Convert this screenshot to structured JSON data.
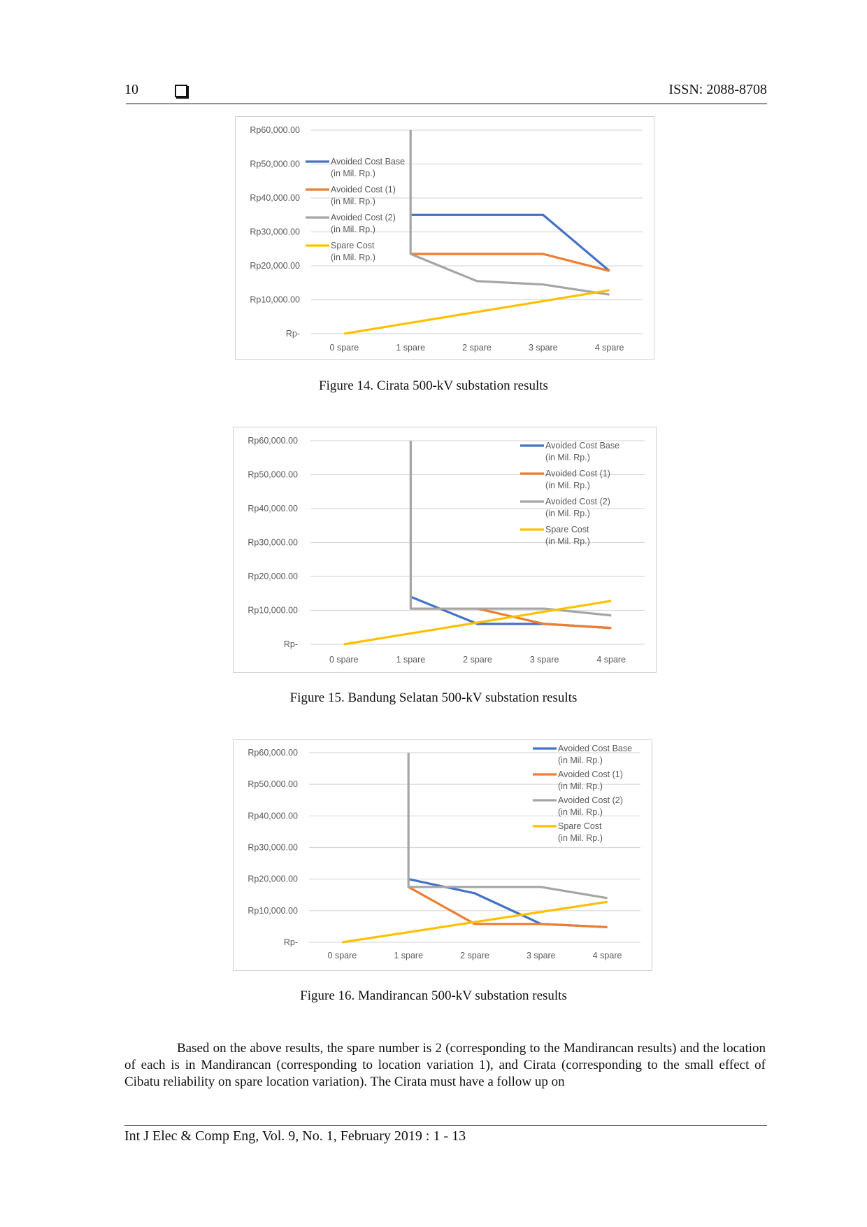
{
  "header": {
    "page_number": "10",
    "issn": "ISSN: 2088-8708"
  },
  "figures": [
    {
      "caption": "Figure 14. Cirata 500-kV substation results"
    },
    {
      "caption": "Figure 15. Bandung Selatan 500-kV substation results"
    },
    {
      "caption": "Figure 16. Mandirancan 500-kV substation results"
    }
  ],
  "chart_data": [
    {
      "type": "line",
      "categories": [
        "0 spare",
        "1 spare",
        "2 spare",
        "3 spare",
        "4 spare"
      ],
      "y_tick_labels": [
        "Rp-",
        "Rp10,000.00",
        "Rp20,000.00",
        "Rp30,000.00",
        "Rp40,000.00",
        "Rp50,000.00",
        "Rp60,000.00"
      ],
      "ylim": [
        0,
        60000
      ],
      "grid": true,
      "legend_position": "top-left",
      "series": [
        {
          "name": "Avoided Cost Base (in Mil. Rp.)",
          "color": "#4472c4",
          "values": [
            null,
            35000,
            35000,
            35000,
            18500
          ]
        },
        {
          "name": "Avoided Cost  (1) (in Mil. Rp.)",
          "color": "#ed7d31",
          "values": [
            null,
            23500,
            23500,
            23500,
            18500
          ]
        },
        {
          "name": "Avoided Cost  (2) (in Mil. Rp.)",
          "color": "#a5a5a5",
          "values": [
            null,
            23500,
            15500,
            14500,
            11500
          ],
          "vertical_drop_from": 60000
        },
        {
          "name": "Spare Cost (in Mil. Rp.)",
          "color": "#ffc000",
          "values": [
            0,
            3200,
            6400,
            9600,
            12800
          ]
        }
      ]
    },
    {
      "type": "line",
      "categories": [
        "0 spare",
        "1 spare",
        "2 spare",
        "3 spare",
        "4 spare"
      ],
      "y_tick_labels": [
        "Rp-",
        "Rp10,000.00",
        "Rp20,000.00",
        "Rp30,000.00",
        "Rp40,000.00",
        "Rp50,000.00",
        "Rp60,000.00"
      ],
      "ylim": [
        0,
        60000
      ],
      "grid": true,
      "legend_position": "top-right",
      "series": [
        {
          "name": "Avoided Cost Base (in Mil. Rp.)",
          "color": "#4472c4",
          "values": [
            null,
            14000,
            6000,
            6000,
            4800
          ]
        },
        {
          "name": "Avoided Cost  (1) (in Mil. Rp.)",
          "color": "#ed7d31",
          "values": [
            null,
            10500,
            10500,
            6000,
            4800
          ]
        },
        {
          "name": "Avoided Cost  (2) (in Mil. Rp.)",
          "color": "#a5a5a5",
          "values": [
            null,
            10500,
            10500,
            10500,
            8500
          ],
          "vertical_drop_from": 60000
        },
        {
          "name": "Spare Cost (in Mil. Rp.)",
          "color": "#ffc000",
          "values": [
            0,
            3200,
            6400,
            9600,
            12800
          ]
        }
      ]
    },
    {
      "type": "line",
      "categories": [
        "0 spare",
        "1 spare",
        "2 spare",
        "3 spare",
        "4 spare"
      ],
      "y_tick_labels": [
        "Rp-",
        "Rp10,000.00",
        "Rp20,000.00",
        "Rp30,000.00",
        "Rp40,000.00",
        "Rp50,000.00",
        "Rp60,000.00"
      ],
      "ylim": [
        0,
        60000
      ],
      "grid": true,
      "legend_position": "top-right",
      "series": [
        {
          "name": "Avoided Cost Base (in Mil. Rp.)",
          "color": "#4472c4",
          "values": [
            null,
            20000,
            15500,
            5800,
            4800
          ]
        },
        {
          "name": "Avoided Cost  (1) (in Mil. Rp.)",
          "color": "#ed7d31",
          "values": [
            null,
            17500,
            5800,
            5800,
            4800
          ]
        },
        {
          "name": "Avoided Cost  (2) (in Mil. Rp.)",
          "color": "#a5a5a5",
          "values": [
            null,
            17500,
            17500,
            17500,
            14000
          ],
          "vertical_drop_from": 60000
        },
        {
          "name": "Spare Cost (in Mil. Rp.)",
          "color": "#ffc000",
          "values": [
            0,
            3200,
            6400,
            9600,
            12800
          ]
        }
      ]
    }
  ],
  "body": {
    "paragraph": "Based on the above results, the spare number is 2 (corresponding to the Mandirancan results) and the location of each is in Mandirancan (corresponding to location variation 1), and Cirata (corresponding to the small effect of Cibatu reliability on spare location variation). The Cirata must have a follow up on"
  },
  "footer": {
    "citation": "Int J Elec & Comp Eng, Vol. 9, No. 1, February 2019 :  1 - 13"
  }
}
